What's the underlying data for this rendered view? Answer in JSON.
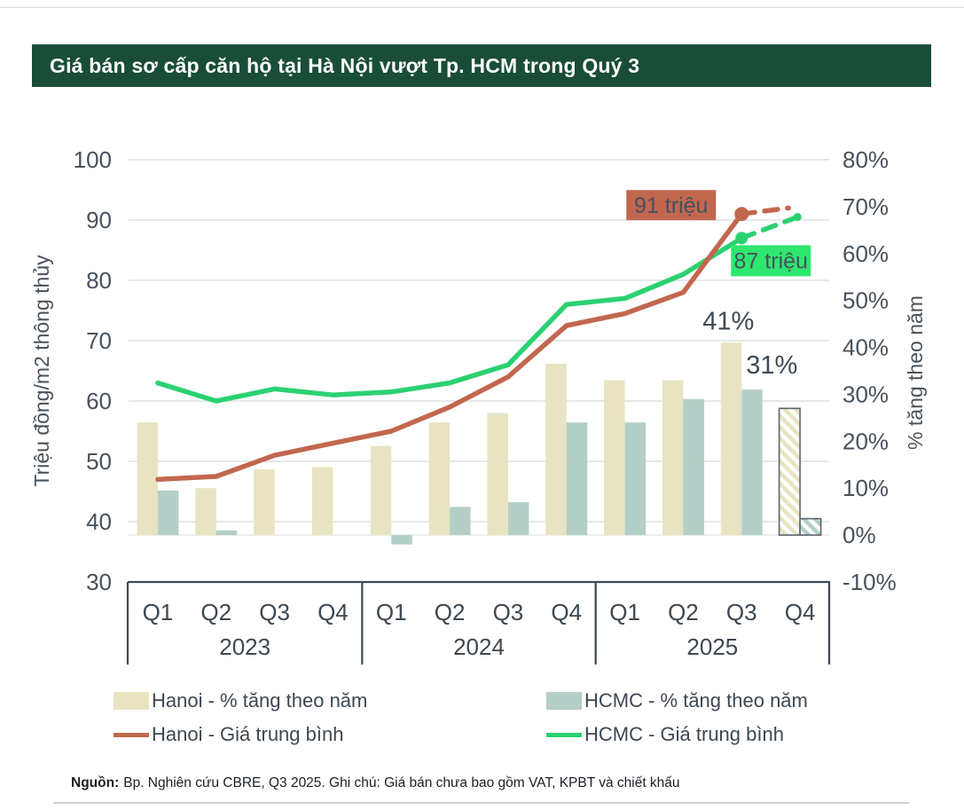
{
  "page": {
    "title": "Giá bán sơ cấp căn hộ tại Hà Nội vượt Tp. HCM trong Quý 3",
    "source": {
      "prefix": "Nguồn:",
      "text": "Bp. Nghiên cứu CBRE, Q3 2025. Ghi chú: Giá bán chưa bao gồm VAT, KPBT và chiết khấu"
    }
  },
  "colors": {
    "title_bar_bg": "#1A4D38",
    "title_text": "#FFFFFF",
    "hanoi_bar": "#E8E4C1",
    "hcmc_bar": "#B4CFC7",
    "hanoi_line": "#C2674F",
    "hcmc_line": "#2BD171",
    "hanoi_label_bg": "#C2674F",
    "hanoi_label_text": "#FFFFFF",
    "hcmc_label_bg": "#2EE76F",
    "hcmc_label_text": "#3F5A50",
    "grid": "#DCE0E3",
    "zero_line": "#E3E6E8",
    "axis_text": "#47525C",
    "axis_box": "#3D4852",
    "annotation_text": "#3D4A55",
    "forecast_outline": "#5A646C"
  },
  "chart_data": {
    "type": "combo-bar-line",
    "years": [
      "2023",
      "2024",
      "2025"
    ],
    "quarters": [
      "Q1",
      "Q2",
      "Q3",
      "Q4",
      "Q1",
      "Q2",
      "Q3",
      "Q4",
      "Q1",
      "Q2",
      "Q3",
      "Q4"
    ],
    "left_axis": {
      "title": "Triệu đồng/m2 thông thủy",
      "min": 30,
      "max": 100,
      "ticks": [
        100,
        90,
        80,
        70,
        60,
        50,
        40,
        30
      ]
    },
    "right_axis": {
      "title": "% tăng theo năm",
      "min": -10,
      "max": 80,
      "ticks": [
        80,
        70,
        60,
        50,
        40,
        30,
        20,
        10,
        0,
        -10
      ],
      "tick_suffix": "%"
    },
    "bar_series": [
      {
        "name": "Hanoi - % tăng theo năm",
        "color_key": "hanoi_bar",
        "axis": "right",
        "values_pct": [
          24,
          10,
          14,
          14.5,
          19,
          24,
          26,
          36.5,
          33,
          33,
          41,
          27
        ],
        "last_quarter_forecast_hatched": true
      },
      {
        "name": "HCMC - % tăng theo năm",
        "color_key": "hcmc_bar",
        "axis": "right",
        "values_pct": [
          9.5,
          1,
          0,
          0,
          -2,
          6,
          7,
          24,
          24,
          29,
          31,
          3.5
        ],
        "last_quarter_forecast_hatched": true
      }
    ],
    "line_series": [
      {
        "name": "Hanoi - Giá trung bình",
        "color_key": "hanoi_line",
        "axis": "left",
        "values": [
          47,
          47.5,
          51,
          53,
          55,
          59,
          64,
          72.5,
          74.5,
          78,
          91
        ],
        "forecast_dashed_to": 92,
        "forecast_end_dot": false,
        "end_label": "91 triệu"
      },
      {
        "name": "HCMC - Giá trung bình",
        "color_key": "hcmc_line",
        "axis": "left",
        "values": [
          63,
          60,
          62,
          61,
          61.5,
          63,
          66,
          76,
          77,
          81,
          87
        ],
        "forecast_dashed_to": 90.5,
        "forecast_end_dot": true,
        "end_label": "87 triệu"
      }
    ],
    "bar_labels": {
      "hanoi_q3_2025": "41%",
      "hcmc_q3_2025": "31%"
    },
    "legend_note": "last quarter (Q4 2025) shown hatched/dashed as forecast"
  }
}
